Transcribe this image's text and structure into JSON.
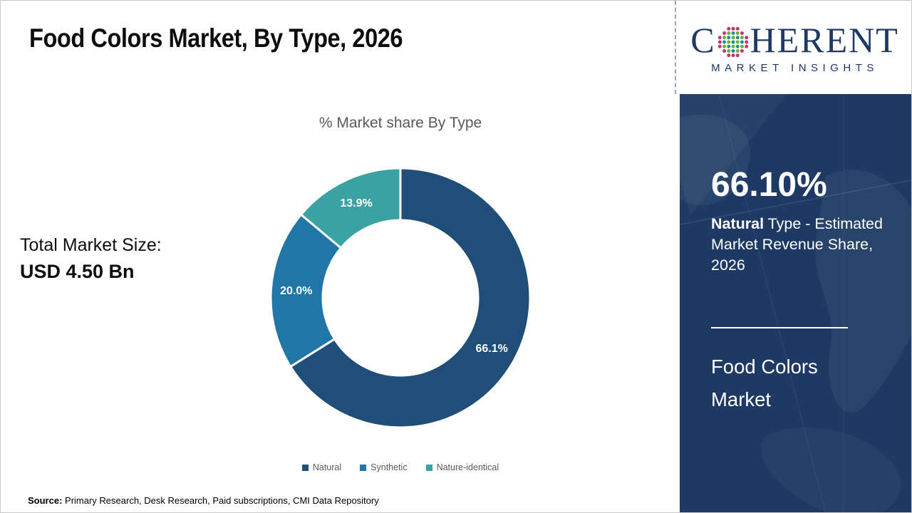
{
  "slide": {
    "title": "Food Colors Market, By Type, 2026",
    "total_market": {
      "label": "Total Market Size:",
      "value": "USD 4.50 Bn"
    },
    "source": {
      "label": "Source:",
      "text": " Primary Research, Desk Research, Paid subscriptions, CMI Data Repository"
    }
  },
  "chart_data": {
    "type": "pie",
    "subtype": "donut",
    "title": "% Market share By Type",
    "categories": [
      "Natural",
      "Synthetic",
      "Nature-identical"
    ],
    "values": [
      66.1,
      20.0,
      13.9
    ],
    "data_labels": [
      "66.1%",
      "20.0%",
      "13.9%"
    ],
    "colors": [
      "#1F4E79",
      "#2076A6",
      "#3AA2A3"
    ],
    "inner_radius_ratio": 0.6,
    "start_angle_deg": 0,
    "direction": "clockwise",
    "legend_position": "bottom",
    "slice_border_color": "#ffffff"
  },
  "panel": {
    "stat_value": "66.10%",
    "stat_desc_bold": "Natural",
    "stat_desc_rest": " Type - Estimated Market Revenue Share, 2026",
    "footer_title": "Food Colors Market",
    "bg_color": "#1E3A64"
  },
  "logo": {
    "word_start": "C",
    "word_end": "HERENT",
    "subtitle": "MARKET INSIGHTS",
    "navy": "#1F3864",
    "globe_colors": {
      "outer": "#C13572",
      "teal": "#1C8E96",
      "green": "#68B42E"
    }
  }
}
